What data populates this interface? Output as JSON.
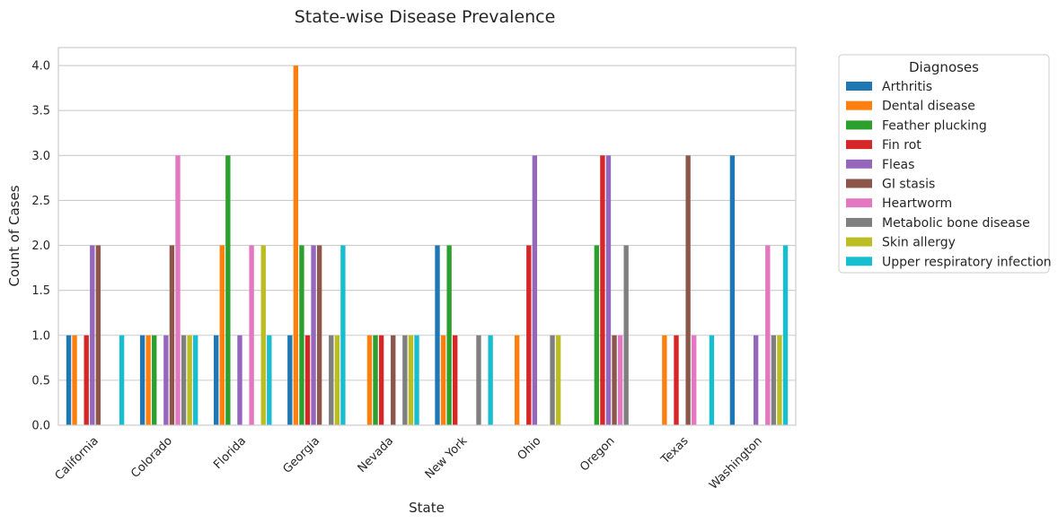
{
  "chart_data": {
    "type": "bar",
    "title": "State-wise Disease Prevalence",
    "xlabel": "State",
    "ylabel": "Count of Cases",
    "ylim": [
      0,
      4.2
    ],
    "yticks": [
      "0.0",
      "0.5",
      "1.0",
      "1.5",
      "2.0",
      "2.5",
      "3.0",
      "3.5",
      "4.0"
    ],
    "grid": true,
    "legend_position": "outside right",
    "legend_title": "Diagnoses",
    "categories": [
      "California",
      "Colorado",
      "Florida",
      "Georgia",
      "Nevada",
      "New York",
      "Ohio",
      "Oregon",
      "Texas",
      "Washington"
    ],
    "series": [
      {
        "name": "Arthritis",
        "color": "#1f77b4",
        "values": [
          1,
          1,
          1,
          1,
          0,
          2,
          0,
          0,
          0,
          3
        ]
      },
      {
        "name": "Dental disease",
        "color": "#ff7f0e",
        "values": [
          1,
          1,
          2,
          4,
          1,
          1,
          1,
          0,
          1,
          0
        ]
      },
      {
        "name": "Feather plucking",
        "color": "#2ca02c",
        "values": [
          0,
          1,
          3,
          2,
          1,
          2,
          0,
          2,
          0,
          0
        ]
      },
      {
        "name": "Fin rot",
        "color": "#d62728",
        "values": [
          1,
          0,
          0,
          1,
          1,
          1,
          2,
          3,
          1,
          0
        ]
      },
      {
        "name": "Fleas",
        "color": "#9467bd",
        "values": [
          2,
          1,
          1,
          2,
          0,
          0,
          3,
          3,
          0,
          1
        ]
      },
      {
        "name": "GI stasis",
        "color": "#8c564b",
        "values": [
          2,
          2,
          0,
          2,
          1,
          0,
          0,
          1,
          3,
          0
        ]
      },
      {
        "name": "Heartworm",
        "color": "#e377c2",
        "values": [
          0,
          3,
          2,
          0,
          0,
          0,
          0,
          1,
          1,
          2
        ]
      },
      {
        "name": "Metabolic bone disease",
        "color": "#7f7f7f",
        "values": [
          0,
          1,
          0,
          1,
          1,
          1,
          1,
          2,
          0,
          1
        ]
      },
      {
        "name": "Skin allergy",
        "color": "#bcbd22",
        "values": [
          0,
          1,
          2,
          1,
          1,
          0,
          1,
          0,
          0,
          1
        ]
      },
      {
        "name": "Upper respiratory infection",
        "color": "#17becf",
        "values": [
          1,
          1,
          1,
          2,
          1,
          1,
          0,
          0,
          1,
          2
        ]
      }
    ]
  }
}
